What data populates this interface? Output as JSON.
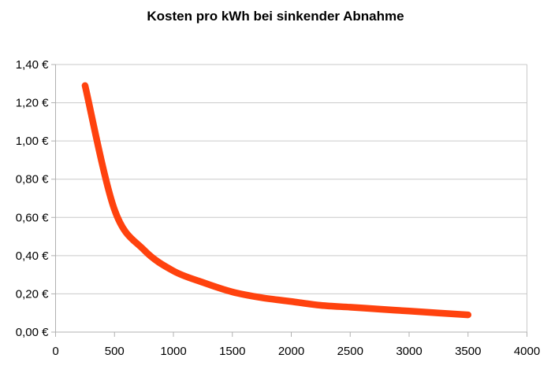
{
  "chart_data": {
    "type": "line",
    "title": "Kosten pro kWh bei sinkender Abnahme",
    "xlabel": "",
    "ylabel": "",
    "xlim": [
      0,
      4000
    ],
    "ylim": [
      0,
      1.4
    ],
    "grid": "horizontal-only",
    "legend_position": "none",
    "x_ticks": [
      {
        "value": 0,
        "label": "0"
      },
      {
        "value": 500,
        "label": "500"
      },
      {
        "value": 1000,
        "label": "1000"
      },
      {
        "value": 1500,
        "label": "1500"
      },
      {
        "value": 2000,
        "label": "2000"
      },
      {
        "value": 2500,
        "label": "2500"
      },
      {
        "value": 3000,
        "label": "3000"
      },
      {
        "value": 3500,
        "label": "3500"
      },
      {
        "value": 4000,
        "label": "4000"
      }
    ],
    "y_ticks": [
      {
        "value": 0.0,
        "label": "0,00 €"
      },
      {
        "value": 0.2,
        "label": "0,20 €"
      },
      {
        "value": 0.4,
        "label": "0,40 €"
      },
      {
        "value": 0.6,
        "label": "0,60 €"
      },
      {
        "value": 0.8,
        "label": "0,80 €"
      },
      {
        "value": 1.0,
        "label": "1,00 €"
      },
      {
        "value": 1.2,
        "label": "1,20 €"
      },
      {
        "value": 1.4,
        "label": "1,40 €"
      }
    ],
    "series": [
      {
        "name": "Kosten pro kWh",
        "color": "#ff420e",
        "line_width": 8.5,
        "points": [
          {
            "x": 250,
            "y": 1.29
          },
          {
            "x": 500,
            "y": 0.64
          },
          {
            "x": 750,
            "y": 0.43
          },
          {
            "x": 1000,
            "y": 0.32
          },
          {
            "x": 1250,
            "y": 0.26
          },
          {
            "x": 1500,
            "y": 0.21
          },
          {
            "x": 1750,
            "y": 0.18
          },
          {
            "x": 2000,
            "y": 0.16
          },
          {
            "x": 2250,
            "y": 0.14
          },
          {
            "x": 2500,
            "y": 0.13
          },
          {
            "x": 2750,
            "y": 0.12
          },
          {
            "x": 3000,
            "y": 0.11
          },
          {
            "x": 3250,
            "y": 0.1
          },
          {
            "x": 3500,
            "y": 0.09
          }
        ]
      }
    ],
    "colors": {
      "background": "#ffffff",
      "grid": "#c9c9c9",
      "axis": "#b0b0b0",
      "tick_text": "#000000",
      "title_text": "#000000"
    }
  }
}
